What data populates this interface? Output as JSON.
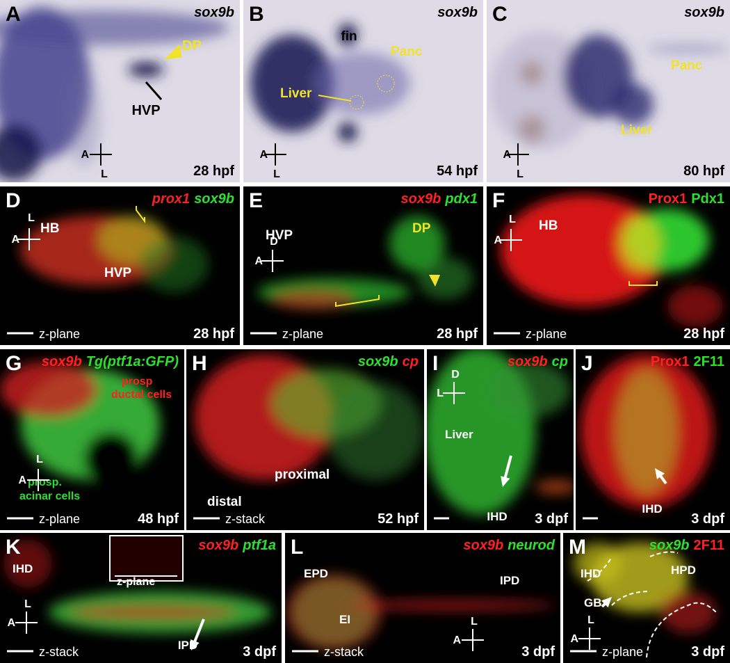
{
  "panels": [
    {
      "letter": "A",
      "genes": [
        {
          "text": "sox9b",
          "color": "#000000",
          "italic": true
        }
      ],
      "labels": [
        {
          "text": "DP",
          "color": "#f2e22a"
        },
        {
          "text": "HVP",
          "color": "#000000"
        }
      ],
      "axes": [
        "A",
        "L"
      ],
      "stage": "28 hpf"
    },
    {
      "letter": "B",
      "genes": [
        {
          "text": "sox9b",
          "color": "#000000",
          "italic": true
        }
      ],
      "labels": [
        {
          "text": "fin",
          "color": "#000000"
        },
        {
          "text": "Panc",
          "color": "#f2e22a"
        },
        {
          "text": "Liver",
          "color": "#f2e22a"
        }
      ],
      "axes": [
        "A",
        "L"
      ],
      "stage": "54 hpf"
    },
    {
      "letter": "C",
      "genes": [
        {
          "text": "sox9b",
          "color": "#000000",
          "italic": true
        }
      ],
      "labels": [
        {
          "text": "Panc",
          "color": "#f2e22a"
        },
        {
          "text": "Liver",
          "color": "#f2e22a"
        }
      ],
      "axes": [
        "A",
        "L"
      ],
      "stage": "80 hpf"
    },
    {
      "letter": "D",
      "genes": [
        {
          "text": "prox1",
          "color": "#ff2020",
          "italic": true
        },
        {
          "text": "sox9b",
          "color": "#2ee02e",
          "italic": true
        }
      ],
      "labels": [
        {
          "text": "HB",
          "color": "#ffffff"
        },
        {
          "text": "HVP",
          "color": "#ffffff"
        }
      ],
      "axes": [
        "L",
        "A"
      ],
      "plane": "z-plane",
      "stage": "28 hpf"
    },
    {
      "letter": "E",
      "genes": [
        {
          "text": "sox9b",
          "color": "#ff2020",
          "italic": true
        },
        {
          "text": "pdx1",
          "color": "#2ee02e",
          "italic": true
        }
      ],
      "labels": [
        {
          "text": "HVP",
          "color": "#ffffff"
        },
        {
          "text": "DP",
          "color": "#f2e22a"
        }
      ],
      "axes": [
        "D",
        "A"
      ],
      "plane": "z-plane",
      "stage": "28 hpf"
    },
    {
      "letter": "F",
      "genes": [
        {
          "text": "Prox1",
          "color": "#ff2020",
          "italic": false
        },
        {
          "text": "Pdx1",
          "color": "#2ee02e",
          "italic": false
        }
      ],
      "labels": [
        {
          "text": "HB",
          "color": "#ffffff"
        }
      ],
      "axes": [
        "L",
        "A"
      ],
      "plane": "z-plane",
      "stage": "28 hpf"
    },
    {
      "letter": "G",
      "genes": [
        {
          "text": "sox9b",
          "color": "#ff2020",
          "italic": true
        },
        {
          "text": "Tg(ptf1a:GFP)",
          "color": "#2ee02e",
          "italic": true
        }
      ],
      "labels": [
        {
          "text": "prosp",
          "color": "#ff2020"
        },
        {
          "text": "ductal cells",
          "color": "#ff2020"
        },
        {
          "text": "prosp.",
          "color": "#2ee02e"
        },
        {
          "text": "acinar cells",
          "color": "#2ee02e"
        }
      ],
      "axes": [
        "L",
        "A"
      ],
      "plane": "z-plane",
      "stage": "48 hpf"
    },
    {
      "letter": "H",
      "genes": [
        {
          "text": "sox9b",
          "color": "#2ee02e",
          "italic": true
        },
        {
          "text": "cp",
          "color": "#ff2020",
          "italic": true
        }
      ],
      "labels": [
        {
          "text": "proximal",
          "color": "#ffffff"
        },
        {
          "text": "distal",
          "color": "#ffffff"
        }
      ],
      "axes": [],
      "plane": "z-stack",
      "stage": "52 hpf"
    },
    {
      "letter": "I",
      "genes": [
        {
          "text": "sox9b",
          "color": "#ff2020",
          "italic": true
        },
        {
          "text": "cp",
          "color": "#2ee02e",
          "italic": true
        }
      ],
      "labels": [
        {
          "text": "Liver",
          "color": "#ffffff"
        },
        {
          "text": "IHD",
          "color": "#ffffff"
        }
      ],
      "axes": [
        "D",
        "L"
      ],
      "stage": "3 dpf"
    },
    {
      "letter": "J",
      "genes": [
        {
          "text": "Prox1",
          "color": "#ff2020",
          "italic": false
        },
        {
          "text": "2F11",
          "color": "#2ee02e",
          "italic": false
        }
      ],
      "labels": [
        {
          "text": "IHD",
          "color": "#ffffff"
        }
      ],
      "axes": [],
      "stage": "3 dpf"
    },
    {
      "letter": "K",
      "genes": [
        {
          "text": "sox9b",
          "color": "#ff2020",
          "italic": true
        },
        {
          "text": "ptf1a",
          "color": "#2ee02e",
          "italic": true
        }
      ],
      "labels": [
        {
          "text": "IHD",
          "color": "#ffffff"
        },
        {
          "text": "IPD",
          "color": "#ffffff"
        },
        {
          "text": "z-plane",
          "color": "#ffffff"
        }
      ],
      "axes": [
        "L",
        "A"
      ],
      "plane": "z-stack",
      "stage": "3 dpf"
    },
    {
      "letter": "L",
      "genes": [
        {
          "text": "sox9b",
          "color": "#ff2020",
          "italic": true
        },
        {
          "text": "neurod",
          "color": "#2ee02e",
          "italic": true
        }
      ],
      "labels": [
        {
          "text": "EPD",
          "color": "#ffffff"
        },
        {
          "text": "EI",
          "color": "#ffffff"
        },
        {
          "text": "IPD",
          "color": "#ffffff"
        }
      ],
      "axes": [
        "L",
        "A"
      ],
      "plane": "z-stack",
      "stage": "3 dpf"
    },
    {
      "letter": "M",
      "genes": [
        {
          "text": "sox9b",
          "color": "#2ee02e",
          "italic": true
        },
        {
          "text": "2F11",
          "color": "#ff2020",
          "italic": false
        }
      ],
      "labels": [
        {
          "text": "IHD",
          "color": "#ffffff"
        },
        {
          "text": "HPD",
          "color": "#ffffff"
        },
        {
          "text": "GB",
          "color": "#ffffff"
        }
      ],
      "axes": [
        "L",
        "A"
      ],
      "plane": "z-plane",
      "stage": "3 dpf"
    }
  ]
}
